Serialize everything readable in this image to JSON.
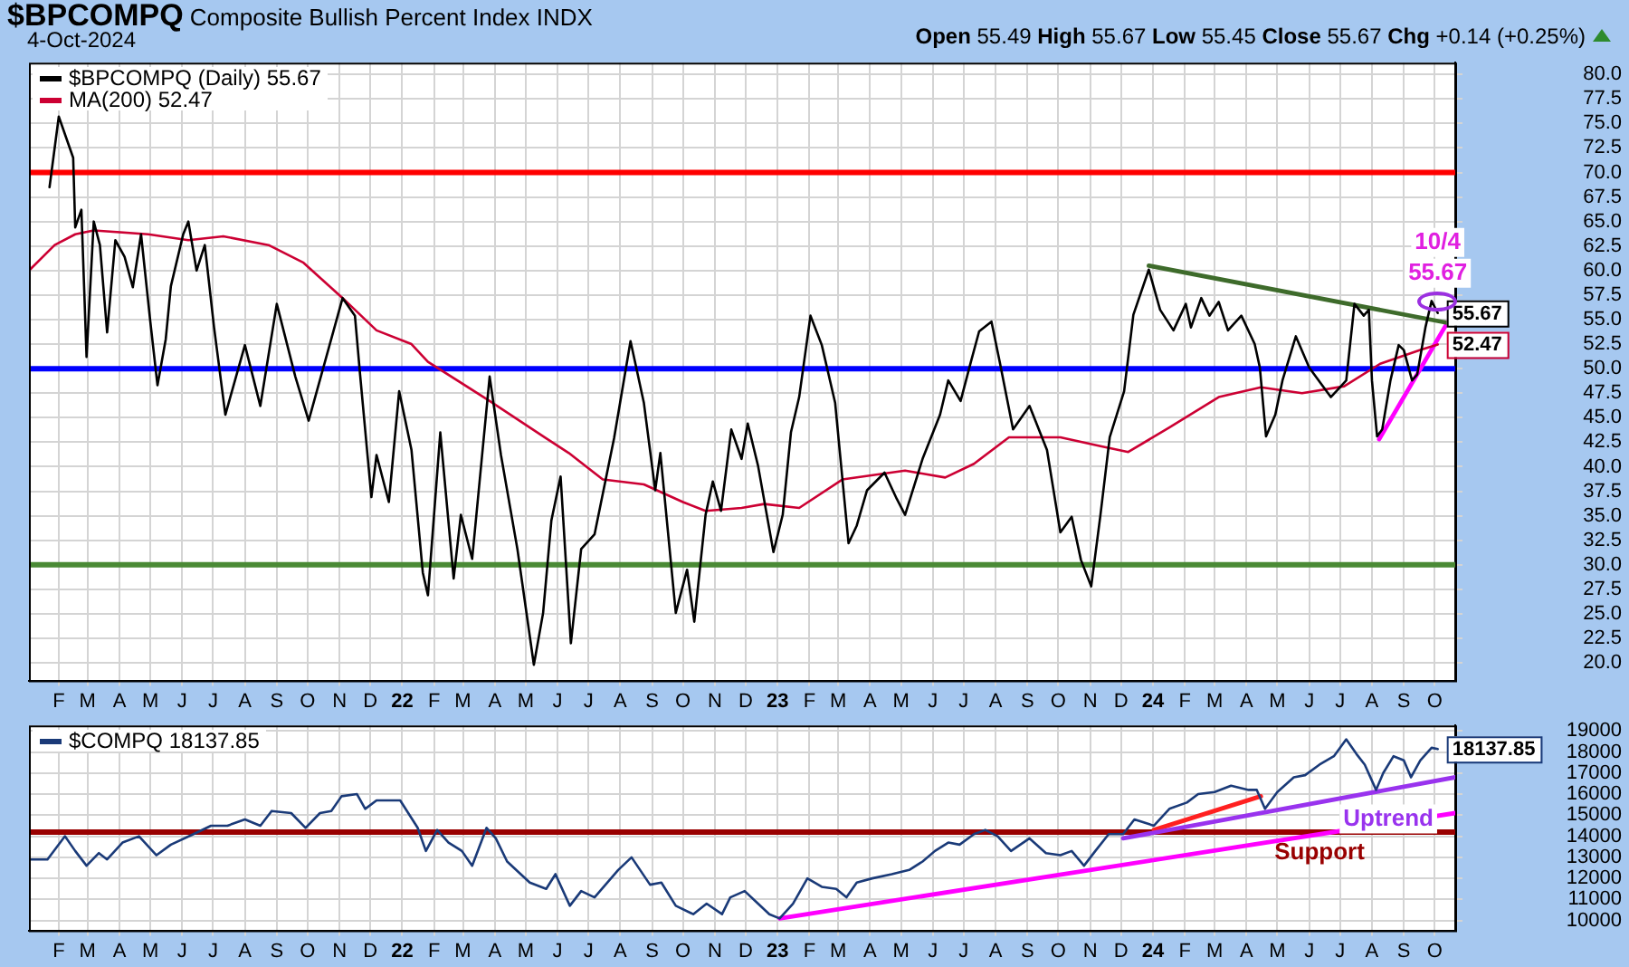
{
  "chart_data": [
    {
      "type": "line",
      "title": "$BPCOMPQ Composite Bullish Percent Index INDX",
      "subtitle": "4-Oct-2024",
      "annotations": [
        "Open 55.49 High 55.67 Low 55.45 Close 55.67 Chg +0.14 (+0.25%)",
        {
          "text": "10/4",
          "x": "2024-10-04",
          "y": 55.67
        },
        {
          "text": "55.67",
          "x": "2024-10-04",
          "y": 55.67
        }
      ],
      "series": [
        {
          "name": "$BPCOMPQ (Daily) 55.67",
          "color": "#000000",
          "x": [
            "2021-01-23",
            "2021-02-01",
            "2021-02-15",
            "2021-02-17",
            "2021-02-23",
            "2021-02-28",
            "2021-03-07",
            "2021-03-13",
            "2021-03-20",
            "2021-03-28",
            "2021-04-06",
            "2021-04-14",
            "2021-04-22",
            "2021-05-01",
            "2021-05-08",
            "2021-05-16",
            "2021-05-21",
            "2021-06-02",
            "2021-06-07",
            "2021-06-15",
            "2021-06-23",
            "2021-07-02",
            "2021-07-13",
            "2021-07-21",
            "2021-08-01",
            "2021-08-16",
            "2021-09-01",
            "2021-09-19",
            "2021-10-02",
            "2021-10-21",
            "2021-11-04",
            "2021-11-16",
            "2021-11-21",
            "2021-12-02",
            "2021-12-07",
            "2021-12-19",
            "2021-12-29",
            "2022-01-10",
            "2022-01-21",
            "2022-01-26",
            "2022-02-07",
            "2022-02-20",
            "2022-02-27",
            "2022-03-10",
            "2022-03-27",
            "2022-04-07",
            "2022-04-23",
            "2022-05-09",
            "2022-05-18",
            "2022-05-26",
            "2022-06-04",
            "2022-06-14",
            "2022-06-24",
            "2022-07-07",
            "2022-07-26",
            "2022-08-11",
            "2022-08-24",
            "2022-09-04",
            "2022-09-09",
            "2022-09-24",
            "2022-10-05",
            "2022-10-12",
            "2022-10-23",
            "2022-10-30",
            "2022-11-07",
            "2022-11-17",
            "2022-11-27",
            "2022-12-03",
            "2022-12-13",
            "2022-12-28",
            "2023-01-06",
            "2023-01-14",
            "2023-01-22",
            "2023-02-02",
            "2023-02-13",
            "2023-02-26",
            "2023-03-11",
            "2023-03-19",
            "2023-03-29",
            "2023-04-15",
            "2023-04-27",
            "2023-05-05",
            "2023-05-22",
            "2023-06-08",
            "2023-06-16",
            "2023-06-28",
            "2023-07-08",
            "2023-07-16",
            "2023-07-28",
            "2023-08-05",
            "2023-08-18",
            "2023-09-03",
            "2023-09-20",
            "2023-10-03",
            "2023-10-14",
            "2023-10-23",
            "2023-11-02",
            "2023-11-11",
            "2023-11-20",
            "2023-12-04",
            "2023-12-13",
            "2023-12-28",
            "2024-01-08",
            "2024-01-21",
            "2024-02-02",
            "2024-02-07",
            "2024-02-17",
            "2024-02-25",
            "2024-03-05",
            "2024-03-14",
            "2024-03-27",
            "2024-04-09",
            "2024-04-14",
            "2024-04-20",
            "2024-04-29",
            "2024-05-06",
            "2024-05-19",
            "2024-06-01",
            "2024-06-22",
            "2024-06-30",
            "2024-07-07",
            "2024-07-15",
            "2024-07-24",
            "2024-07-29",
            "2024-08-01",
            "2024-08-06",
            "2024-08-11",
            "2024-08-19",
            "2024-08-27",
            "2024-09-01",
            "2024-09-09",
            "2024-09-14",
            "2024-09-22",
            "2024-09-28",
            "2024-10-04"
          ],
          "values": [
            68.5,
            75.7,
            71.5,
            64.4,
            66.2,
            51.2,
            65,
            62.6,
            53.7,
            63.1,
            61.4,
            58.3,
            63.7,
            54.8,
            48.3,
            53,
            58.4,
            63.7,
            65,
            60,
            62.6,
            54.2,
            45.3,
            48.3,
            52.4,
            46.2,
            56.6,
            49.2,
            44.7,
            51.9,
            57.2,
            55.4,
            49.4,
            36.9,
            41.2,
            36.4,
            47.7,
            41.7,
            29.2,
            26.9,
            43.5,
            28.6,
            35.1,
            30.6,
            49.2,
            41.2,
            31.6,
            19.8,
            25.1,
            34.5,
            39,
            22,
            31.6,
            33.1,
            42.9,
            52.8,
            46.5,
            37.6,
            41.4,
            25.1,
            29.5,
            24.2,
            35.1,
            38.5,
            35.5,
            43.8,
            40.8,
            44.4,
            40.1,
            31.3,
            35.1,
            43.5,
            47.1,
            55.4,
            52.4,
            46.5,
            32.2,
            34,
            37.6,
            39.4,
            36.7,
            35.1,
            40.8,
            45.3,
            48.8,
            46.7,
            50.7,
            53.8,
            54.8,
            50.7,
            43.8,
            46.2,
            41.7,
            33.3,
            34.9,
            30.5,
            27.8,
            35.1,
            43,
            47.7,
            55.5,
            60.1,
            56,
            53.9,
            56.6,
            54.2,
            57.2,
            55.4,
            56.8,
            53.9,
            55.4,
            52.5,
            50.1,
            43.1,
            45.3,
            48.8,
            53.3,
            50.1,
            47.1,
            48,
            48.8,
            56.6,
            55.4,
            56,
            48.8,
            43.1,
            43.8,
            48.8,
            52.4,
            51.9,
            48.8,
            49.4,
            54.2,
            56.9,
            55.67
          ],
          "value_labels": [
            null,
            null,
            null,
            null,
            null,
            null,
            null,
            null,
            null,
            null,
            null,
            null,
            null,
            null,
            null,
            null,
            null,
            null,
            null,
            null,
            null,
            null,
            null,
            null,
            null,
            null,
            null,
            null,
            null,
            null,
            null,
            null,
            null,
            null,
            null,
            null,
            null,
            null,
            null,
            null,
            null,
            null,
            null,
            null,
            null,
            null,
            null,
            null,
            null,
            null,
            null,
            null,
            null,
            null,
            null,
            null,
            null,
            null,
            null,
            null,
            null,
            null,
            null,
            null,
            null,
            null,
            null,
            null,
            null,
            null,
            null,
            null,
            null,
            null,
            null,
            null,
            null,
            null,
            null,
            null,
            null,
            null,
            null,
            null,
            null,
            null,
            null,
            null,
            null,
            null,
            null,
            null,
            null,
            null,
            null,
            null,
            null,
            null,
            null,
            null,
            null,
            null,
            null,
            null,
            null,
            null,
            null,
            null,
            null,
            null,
            null,
            null,
            null,
            null,
            null,
            null,
            null,
            null,
            null,
            null,
            null,
            null,
            null,
            null,
            null,
            null,
            null,
            null,
            null,
            null,
            null,
            null,
            null,
            null,
            "55.67"
          ]
        },
        {
          "name": "MA(200) 52.47",
          "color": "#cc0033",
          "x": [
            "2021-01-04",
            "2021-01-28",
            "2021-02-17",
            "2021-03-07",
            "2021-04-29",
            "2021-06-07",
            "2021-07-11",
            "2021-08-24",
            "2021-09-27",
            "2021-11-04",
            "2021-12-07",
            "2022-01-10",
            "2022-01-26",
            "2022-03-27",
            "2022-05-21",
            "2022-06-12",
            "2022-07-15",
            "2022-08-24",
            "2022-10-01",
            "2022-10-23",
            "2022-11-27",
            "2022-12-19",
            "2023-01-22",
            "2023-03-05",
            "2023-05-05",
            "2023-06-13",
            "2023-07-11",
            "2023-08-14",
            "2023-10-03",
            "2023-11-11",
            "2023-12-08",
            "2024-01-17",
            "2024-03-05",
            "2024-04-15",
            "2024-05-25",
            "2024-07-05",
            "2024-08-09",
            "2024-09-17",
            "2024-10-04"
          ],
          "values": [
            60.1,
            62.6,
            63.7,
            64.1,
            63.7,
            63.1,
            63.5,
            62.6,
            60.8,
            57.2,
            53.9,
            52.5,
            50.7,
            46.7,
            42.9,
            41.4,
            38.7,
            38.2,
            36.4,
            35.5,
            35.8,
            36.2,
            35.8,
            38.7,
            39.6,
            38.9,
            40.3,
            43,
            43,
            42.1,
            41.5,
            44,
            47.1,
            48.1,
            47.5,
            48.2,
            50.5,
            51.9,
            52.47
          ],
          "value_labels": [
            null,
            null,
            null,
            null,
            null,
            null,
            null,
            null,
            null,
            null,
            null,
            null,
            null,
            null,
            null,
            null,
            null,
            null,
            null,
            null,
            null,
            null,
            null,
            null,
            null,
            null,
            null,
            null,
            null,
            null,
            null,
            null,
            null,
            null,
            null,
            null,
            null,
            null,
            "52.47"
          ]
        },
        {
          "color": "#3e6b2b",
          "x": [
            "2023-12-28",
            "2024-10-12"
          ],
          "values": [
            60.5,
            54.7
          ]
        },
        {
          "color": "#ff00ff",
          "x": [
            "2024-08-08",
            "2024-10-14"
          ],
          "values": [
            42.8,
            54.8
          ]
        }
      ],
      "xlim": [
        "2021-01-03",
        "2024-10-21"
      ],
      "xticks": [
        {
          "value": "2021-02",
          "label": "F"
        },
        {
          "value": "2021-03",
          "label": "M"
        },
        {
          "value": "2021-04",
          "label": "A"
        },
        {
          "value": "2021-05",
          "label": "M"
        },
        {
          "value": "2021-06",
          "label": "J"
        },
        {
          "value": "2021-07",
          "label": "J"
        },
        {
          "value": "2021-08",
          "label": "A"
        },
        {
          "value": "2021-09",
          "label": "S"
        },
        {
          "value": "2021-10",
          "label": "O"
        },
        {
          "value": "2021-11",
          "label": "N"
        },
        {
          "value": "2021-12",
          "label": "D"
        },
        {
          "value": "2022-01",
          "label": "22"
        },
        {
          "value": "2022-02",
          "label": "F"
        },
        {
          "value": "2022-03",
          "label": "M"
        },
        {
          "value": "2022-04",
          "label": "A"
        },
        {
          "value": "2022-05",
          "label": "M"
        },
        {
          "value": "2022-06",
          "label": "J"
        },
        {
          "value": "2022-07",
          "label": "J"
        },
        {
          "value": "2022-08",
          "label": "A"
        },
        {
          "value": "2022-09",
          "label": "S"
        },
        {
          "value": "2022-10",
          "label": "O"
        },
        {
          "value": "2022-11",
          "label": "N"
        },
        {
          "value": "2022-12",
          "label": "D"
        },
        {
          "value": "2023-01",
          "label": "23"
        },
        {
          "value": "2023-02",
          "label": "F"
        },
        {
          "value": "2023-03",
          "label": "M"
        },
        {
          "value": "2023-04",
          "label": "A"
        },
        {
          "value": "2023-05",
          "label": "M"
        },
        {
          "value": "2023-06",
          "label": "J"
        },
        {
          "value": "2023-07",
          "label": "J"
        },
        {
          "value": "2023-08",
          "label": "A"
        },
        {
          "value": "2023-09",
          "label": "S"
        },
        {
          "value": "2023-10",
          "label": "O"
        },
        {
          "value": "2023-11",
          "label": "N"
        },
        {
          "value": "2023-12",
          "label": "D"
        },
        {
          "value": "2024-01",
          "label": "24"
        },
        {
          "value": "2024-02",
          "label": "F"
        },
        {
          "value": "2024-03",
          "label": "M"
        },
        {
          "value": "2024-04",
          "label": "A"
        },
        {
          "value": "2024-05",
          "label": "M"
        },
        {
          "value": "2024-06",
          "label": "J"
        },
        {
          "value": "2024-07",
          "label": "J"
        },
        {
          "value": "2024-08",
          "label": "A"
        },
        {
          "value": "2024-09",
          "label": "S"
        },
        {
          "value": "2024-10",
          "label": "O"
        }
      ],
      "ylim": [
        18.2,
        81.2
      ],
      "yticks": [
        {
          "value": 20,
          "label": "20.0"
        },
        {
          "value": 22.5,
          "label": "22.5"
        },
        {
          "value": 25,
          "label": "25.0"
        },
        {
          "value": 27.5,
          "label": "27.5"
        },
        {
          "value": 30,
          "label": "30.0"
        },
        {
          "value": 32.5,
          "label": "32.5"
        },
        {
          "value": 35,
          "label": "35.0"
        },
        {
          "value": 37.5,
          "label": "37.5"
        },
        {
          "value": 40,
          "label": "40.0"
        },
        {
          "value": 42.5,
          "label": "42.5"
        },
        {
          "value": 45,
          "label": "45.0"
        },
        {
          "value": 47.5,
          "label": "47.5"
        },
        {
          "value": 50,
          "label": "50.0"
        },
        {
          "value": 52.5,
          "label": "52.5"
        },
        {
          "value": 55,
          "label": "55.0"
        },
        {
          "value": 57.5,
          "label": "57.5"
        },
        {
          "value": 60,
          "label": "60.0"
        },
        {
          "value": 62.5,
          "label": "62.5"
        },
        {
          "value": 65,
          "label": "65.0"
        },
        {
          "value": 67.5,
          "label": "67.5"
        },
        {
          "value": 70,
          "label": "70.0"
        },
        {
          "value": 72.5,
          "label": "72.5"
        },
        {
          "value": 75,
          "label": "75.0"
        },
        {
          "value": 77.5,
          "label": "77.5"
        },
        {
          "value": 80,
          "label": "80.0"
        }
      ],
      "ref_lines": [
        {
          "axis": "y",
          "value": 70,
          "color": "#ff0000"
        },
        {
          "axis": "y",
          "value": 50,
          "color": "#0000ff"
        },
        {
          "axis": "y",
          "value": 30,
          "color": "#4a8a35"
        }
      ],
      "grid": true,
      "legend": "top left",
      "marker": "none"
    },
    {
      "type": "line",
      "annotations": [
        {
          "text": "Uptrend",
          "x": "2024-08-17",
          "y": 16200
        }
      ],
      "series": [
        {
          "name": "$COMPQ 18137.85",
          "color": "#1a3a78",
          "x": [
            "2021-01-04",
            "2021-01-21",
            "2021-02-07",
            "2021-02-17",
            "2021-02-28",
            "2021-03-12",
            "2021-03-20",
            "2021-04-04",
            "2021-04-20",
            "2021-05-07",
            "2021-05-21",
            "2021-06-12",
            "2021-06-29",
            "2021-07-15",
            "2021-08-01",
            "2021-08-16",
            "2021-08-27",
            "2021-09-15",
            "2021-09-29",
            "2021-10-13",
            "2021-10-24",
            "2021-11-03",
            "2021-11-18",
            "2021-11-26",
            "2021-12-07",
            "2021-12-21",
            "2021-12-30",
            "2022-01-16",
            "2022-01-24",
            "2022-02-04",
            "2022-02-15",
            "2022-02-28",
            "2022-03-10",
            "2022-03-24",
            "2022-04-02",
            "2022-04-13",
            "2022-05-05",
            "2022-05-21",
            "2022-05-30",
            "2022-06-13",
            "2022-06-24",
            "2022-07-07",
            "2022-07-30",
            "2022-08-12",
            "2022-08-30",
            "2022-09-10",
            "2022-09-24",
            "2022-10-11",
            "2022-10-24",
            "2022-11-08",
            "2022-11-16",
            "2022-11-30",
            "2022-12-13",
            "2022-12-24",
            "2023-01-03",
            "2023-01-16",
            "2023-01-30",
            "2023-02-13",
            "2023-02-27",
            "2023-03-09",
            "2023-03-19",
            "2023-04-03",
            "2023-04-22",
            "2023-05-09",
            "2023-05-22",
            "2023-06-03",
            "2023-06-16",
            "2023-06-27",
            "2023-07-11",
            "2023-07-22",
            "2023-08-03",
            "2023-08-16",
            "2023-09-03",
            "2023-09-19",
            "2023-10-03",
            "2023-10-14",
            "2023-10-26",
            "2023-11-06",
            "2023-11-19",
            "2023-12-03",
            "2023-12-14",
            "2024-01-02",
            "2024-01-17",
            "2024-02-03",
            "2024-02-14",
            "2024-03-01",
            "2024-03-17",
            "2024-04-03",
            "2024-04-11",
            "2024-04-19",
            "2024-05-01",
            "2024-05-17",
            "2024-05-28",
            "2024-06-11",
            "2024-06-25",
            "2024-07-07",
            "2024-07-17",
            "2024-07-25",
            "2024-08-05",
            "2024-08-12",
            "2024-08-22",
            "2024-09-01",
            "2024-09-08",
            "2024-09-17",
            "2024-09-28",
            "2024-10-04"
          ],
          "values": [
            12900,
            12900,
            14000,
            13300,
            12600,
            13200,
            12900,
            13700,
            14000,
            13100,
            13600,
            14100,
            14500,
            14500,
            14800,
            14500,
            15200,
            15100,
            14400,
            15100,
            15200,
            15900,
            16000,
            15300,
            15700,
            15700,
            15700,
            14400,
            13300,
            14300,
            13700,
            13300,
            12600,
            14400,
            13900,
            12800,
            11800,
            11500,
            12200,
            10700,
            11400,
            11100,
            12400,
            13000,
            11700,
            11800,
            10700,
            10300,
            10800,
            10300,
            11100,
            11400,
            10800,
            10300,
            10100,
            10800,
            12000,
            11600,
            11500,
            11100,
            11800,
            12000,
            12200,
            12400,
            12800,
            13300,
            13700,
            13600,
            14100,
            14300,
            14000,
            13300,
            13900,
            13200,
            13100,
            13300,
            12600,
            13300,
            14100,
            14100,
            14800,
            14500,
            15300,
            15600,
            16000,
            16100,
            16400,
            16200,
            16200,
            15300,
            16100,
            16800,
            16900,
            17400,
            17800,
            18600,
            17900,
            17400,
            16200,
            17000,
            17800,
            17600,
            16800,
            17600,
            18200,
            18137.85
          ],
          "value_labels": [
            null,
            null,
            null,
            null,
            null,
            null,
            null,
            null,
            null,
            null,
            null,
            null,
            null,
            null,
            null,
            null,
            null,
            null,
            null,
            null,
            null,
            null,
            null,
            null,
            null,
            null,
            null,
            null,
            null,
            null,
            null,
            null,
            null,
            null,
            null,
            null,
            null,
            null,
            null,
            null,
            null,
            null,
            null,
            null,
            null,
            null,
            null,
            null,
            null,
            null,
            null,
            null,
            null,
            null,
            null,
            null,
            null,
            null,
            null,
            null,
            null,
            null,
            null,
            null,
            null,
            null,
            null,
            null,
            null,
            null,
            null,
            null,
            null,
            null,
            null,
            null,
            null,
            null,
            null,
            null,
            null,
            null,
            null,
            null,
            null,
            null,
            null,
            null,
            null,
            null,
            null,
            null,
            null,
            null,
            null,
            null,
            null,
            null,
            null,
            null,
            null,
            null,
            null,
            null,
            null,
            "18137.85"
          ]
        },
        {
          "color": "#ff00ff",
          "x": [
            "2023-01-03",
            "2024-10-21"
          ],
          "values": [
            10100,
            15100
          ]
        },
        {
          "color": "#9933ee",
          "x": [
            "2023-12-03",
            "2024-10-21"
          ],
          "values": [
            13900,
            16800
          ]
        },
        {
          "color": "#ff2020",
          "x": [
            "2024-01-02",
            "2024-04-15"
          ],
          "values": [
            14300,
            15900
          ]
        }
      ],
      "xlim": [
        "2021-01-03",
        "2024-10-21"
      ],
      "xticks": [
        {
          "value": "2021-02",
          "label": "F"
        },
        {
          "value": "2021-03",
          "label": "M"
        },
        {
          "value": "2021-04",
          "label": "A"
        },
        {
          "value": "2021-05",
          "label": "M"
        },
        {
          "value": "2021-06",
          "label": "J"
        },
        {
          "value": "2021-07",
          "label": "J"
        },
        {
          "value": "2021-08",
          "label": "A"
        },
        {
          "value": "2021-09",
          "label": "S"
        },
        {
          "value": "2021-10",
          "label": "O"
        },
        {
          "value": "2021-11",
          "label": "N"
        },
        {
          "value": "2021-12",
          "label": "D"
        },
        {
          "value": "2022-01",
          "label": "22"
        },
        {
          "value": "2022-02",
          "label": "F"
        },
        {
          "value": "2022-03",
          "label": "M"
        },
        {
          "value": "2022-04",
          "label": "A"
        },
        {
          "value": "2022-05",
          "label": "M"
        },
        {
          "value": "2022-06",
          "label": "J"
        },
        {
          "value": "2022-07",
          "label": "J"
        },
        {
          "value": "2022-08",
          "label": "A"
        },
        {
          "value": "2022-09",
          "label": "S"
        },
        {
          "value": "2022-10",
          "label": "O"
        },
        {
          "value": "2022-11",
          "label": "N"
        },
        {
          "value": "2022-12",
          "label": "D"
        },
        {
          "value": "2023-01",
          "label": "23"
        },
        {
          "value": "2023-02",
          "label": "F"
        },
        {
          "value": "2023-03",
          "label": "M"
        },
        {
          "value": "2023-04",
          "label": "A"
        },
        {
          "value": "2023-05",
          "label": "M"
        },
        {
          "value": "2023-06",
          "label": "J"
        },
        {
          "value": "2023-07",
          "label": "J"
        },
        {
          "value": "2023-08",
          "label": "A"
        },
        {
          "value": "2023-09",
          "label": "S"
        },
        {
          "value": "2023-10",
          "label": "O"
        },
        {
          "value": "2023-11",
          "label": "N"
        },
        {
          "value": "2023-12",
          "label": "D"
        },
        {
          "value": "2024-01",
          "label": "24"
        },
        {
          "value": "2024-02",
          "label": "F"
        },
        {
          "value": "2024-03",
          "label": "M"
        },
        {
          "value": "2024-04",
          "label": "A"
        },
        {
          "value": "2024-05",
          "label": "M"
        },
        {
          "value": "2024-06",
          "label": "J"
        },
        {
          "value": "2024-07",
          "label": "J"
        },
        {
          "value": "2024-08",
          "label": "A"
        },
        {
          "value": "2024-09",
          "label": "S"
        },
        {
          "value": "2024-10",
          "label": "O"
        }
      ],
      "ylim": [
        9530,
        19260
      ],
      "yticks": [
        10000,
        11000,
        12000,
        13000,
        14000,
        15000,
        16000,
        17000,
        18000,
        19000
      ],
      "ref_lines": [
        {
          "axis": "y",
          "value": 14200,
          "label": "Support",
          "color": "#990000"
        }
      ],
      "grid": true,
      "legend": "top left",
      "marker": "none"
    }
  ]
}
